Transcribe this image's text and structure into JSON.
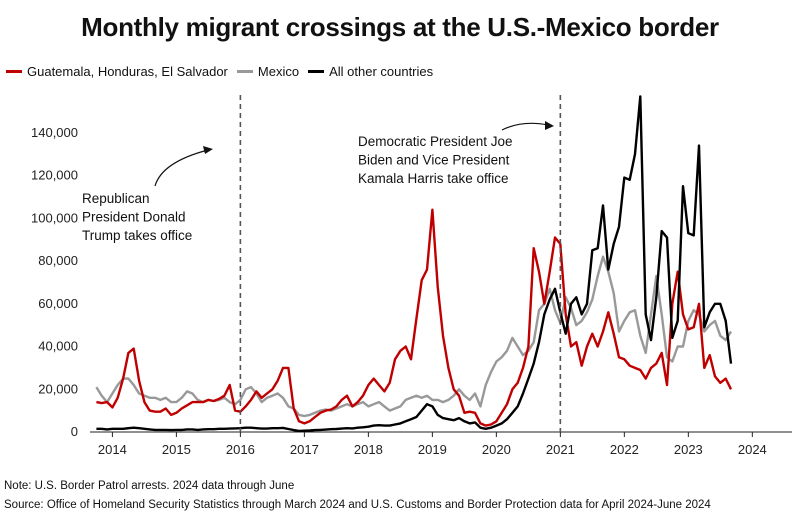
{
  "title": "Monthly migrant crossings at the U.S.-Mexico border",
  "note": "Note: U.S. Border Patrol arrests. 2024 data through June",
  "source": "Source: Office of Homeland Security Statistics through March 2024 and U.S. Customs and Border Protection data for April 2024-June 2024",
  "chart_data": {
    "type": "line",
    "title": "Monthly migrant crossings at the U.S.-Mexico border",
    "xlabel": "",
    "ylabel": "",
    "ylim": [
      0,
      160000
    ],
    "xlim": [
      2013.65,
      2024.62
    ],
    "y_ticks": [
      0,
      20000,
      40000,
      60000,
      80000,
      100000,
      120000,
      140000
    ],
    "y_tick_labels": [
      "0",
      "20,000",
      "40,000",
      "60,000",
      "80,000",
      "100,000",
      "120,000",
      "140,000"
    ],
    "x_ticks": [
      2014,
      2015,
      2016,
      2017,
      2018,
      2019,
      2020,
      2021,
      2022,
      2023,
      2024
    ],
    "x_tick_labels": [
      "2014",
      "2015",
      "2016",
      "2017",
      "2018",
      "2019",
      "2020",
      "2021",
      "2022",
      "2023",
      "2024"
    ],
    "grid": false,
    "legend": "top-left",
    "x_start": "2013-10",
    "x_step": "month",
    "series": [
      {
        "name": "Guatemala, Honduras, El Salvador",
        "color": "#c00000",
        "values": [
          14000,
          13500,
          14000,
          11500,
          16000,
          25000,
          37000,
          39000,
          24000,
          14000,
          10000,
          9500,
          9500,
          11000,
          8000,
          9000,
          11000,
          12500,
          14000,
          14000,
          14000,
          15000,
          14500,
          15500,
          17000,
          22000,
          10000,
          9500,
          12000,
          15000,
          19000,
          16000,
          18000,
          20000,
          24000,
          30000,
          30000,
          11000,
          5000,
          4000,
          5000,
          7000,
          9000,
          10000,
          10500,
          12000,
          15000,
          17000,
          12000,
          14000,
          17000,
          22000,
          25000,
          22000,
          19000,
          23000,
          34000,
          38000,
          40000,
          34000,
          53000,
          71000,
          76000,
          104000,
          68000,
          45000,
          30000,
          20000,
          17000,
          9000,
          9500,
          9000,
          4000,
          3000,
          3500,
          5000,
          9000,
          13000,
          20000,
          23000,
          30000,
          40000,
          86000,
          75000,
          60000,
          75000,
          91000,
          88000,
          55000,
          40000,
          42000,
          31000,
          40000,
          46000,
          40000,
          47000,
          56000,
          46000,
          35000,
          34000,
          31000,
          30000,
          29000,
          25000,
          30000,
          32000,
          37000,
          22000,
          60000,
          75000,
          55000,
          48000,
          49000,
          60000,
          30000,
          36000,
          26000,
          23000,
          25000,
          20000
        ]
      },
      {
        "name": "Mexico",
        "color": "#999999",
        "values": [
          21000,
          17000,
          14000,
          18000,
          22000,
          25000,
          25000,
          22000,
          18000,
          17000,
          16000,
          16000,
          15000,
          16000,
          14000,
          14000,
          16000,
          19000,
          18000,
          15000,
          14000,
          15000,
          14500,
          15000,
          16000,
          14000,
          13000,
          15000,
          20000,
          21000,
          18000,
          14000,
          16000,
          17000,
          18000,
          16000,
          12000,
          11000,
          8000,
          7500,
          8000,
          9000,
          10000,
          10500,
          10000,
          11000,
          12000,
          13000,
          12000,
          13000,
          14000,
          12000,
          13000,
          14000,
          12000,
          10000,
          11000,
          12000,
          15000,
          16000,
          17000,
          16000,
          17000,
          15000,
          15000,
          14000,
          15000,
          17000,
          20000,
          17000,
          15000,
          18000,
          12000,
          22000,
          28000,
          33000,
          35000,
          38000,
          44000,
          40000,
          36000,
          38000,
          42000,
          57000,
          60000,
          67000,
          57000,
          51000,
          63000,
          58000,
          50000,
          52000,
          56000,
          62000,
          73000,
          82000,
          75000,
          65000,
          47000,
          52000,
          56000,
          57000,
          45000,
          37000,
          55000,
          73000,
          55000,
          35000,
          33000,
          40000,
          40000,
          52000,
          57000,
          55000,
          47000,
          50000,
          52000,
          45000,
          43000,
          47000
        ]
      },
      {
        "name": "All other countries",
        "color": "#000000",
        "values": [
          1500,
          1500,
          1200,
          1500,
          1500,
          1500,
          1800,
          2000,
          1800,
          1500,
          1200,
          1000,
          1000,
          1000,
          900,
          1000,
          1000,
          1200,
          1200,
          1000,
          1200,
          1300,
          1300,
          1500,
          1500,
          1600,
          1700,
          1800,
          2000,
          2000,
          1800,
          1600,
          1600,
          1800,
          1800,
          1900,
          1400,
          900,
          500,
          600,
          700,
          900,
          1000,
          1100,
          1300,
          1400,
          1600,
          1800,
          1700,
          2000,
          2200,
          2500,
          3000,
          3200,
          3000,
          3000,
          3500,
          4000,
          5000,
          6000,
          7000,
          10000,
          13000,
          12000,
          8000,
          6500,
          6000,
          5500,
          6500,
          5000,
          4000,
          4500,
          2000,
          1500,
          2000,
          3000,
          4000,
          6000,
          9000,
          12000,
          18000,
          25000,
          32000,
          42000,
          55000,
          62000,
          67000,
          56000,
          46000,
          60000,
          63000,
          55000,
          60000,
          85000,
          86000,
          106000,
          76000,
          88000,
          96000,
          119000,
          118000,
          130000,
          157000,
          55000,
          43000,
          63000,
          94000,
          91000,
          44000,
          52000,
          115000,
          93000,
          92000,
          134000,
          49000,
          56000,
          60000,
          60000,
          52000,
          32000
        ]
      }
    ],
    "annotations": [
      {
        "x": 2016.0,
        "text": [
          "Republican",
          "President Donald",
          "Trump takes office"
        ]
      },
      {
        "x": 2021.0,
        "text": [
          "Democratic President Joe",
          "Biden and Vice President",
          "Kamala Harris take office"
        ]
      }
    ]
  }
}
